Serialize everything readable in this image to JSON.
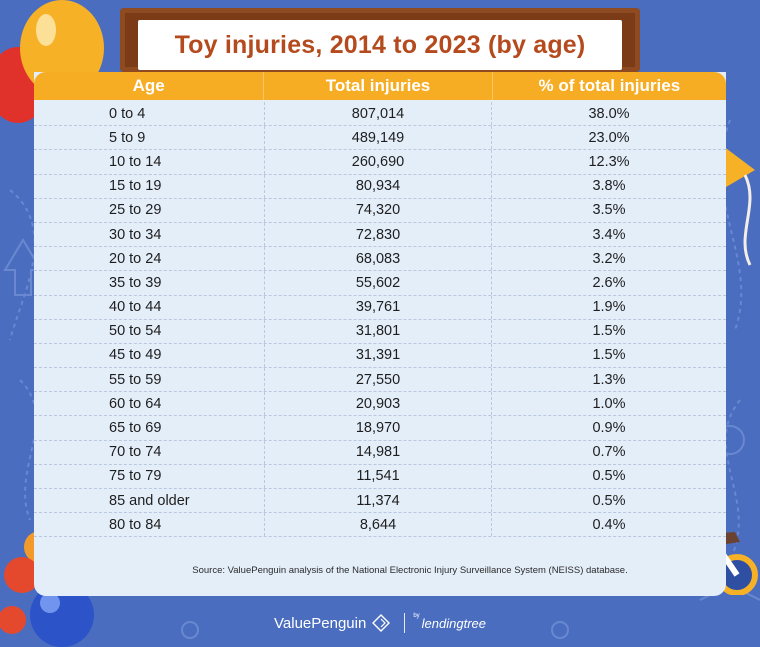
{
  "title": "Toy injuries, 2014 to 2023 (by age)",
  "table": {
    "headers": [
      "Age",
      "Total injuries",
      "% of total injuries"
    ],
    "rows": [
      [
        "0 to 4",
        "807,014",
        "38.0%"
      ],
      [
        "5 to 9",
        "489,149",
        "23.0%"
      ],
      [
        "10 to 14",
        "260,690",
        "12.3%"
      ],
      [
        "15 to 19",
        "80,934",
        "3.8%"
      ],
      [
        "25 to 29",
        "74,320",
        "3.5%"
      ],
      [
        "30 to 34",
        "72,830",
        "3.4%"
      ],
      [
        "20 to 24",
        "68,083",
        "3.2%"
      ],
      [
        "35 to 39",
        "55,602",
        "2.6%"
      ],
      [
        "40 to 44",
        "39,761",
        "1.9%"
      ],
      [
        "50 to 54",
        "31,801",
        "1.5%"
      ],
      [
        "45 to 49",
        "31,391",
        "1.5%"
      ],
      [
        "55 to 59",
        "27,550",
        "1.3%"
      ],
      [
        "60 to 64",
        "20,903",
        "1.0%"
      ],
      [
        "65 to 69",
        "18,970",
        "0.9%"
      ],
      [
        "70 to 74",
        "14,981",
        "0.7%"
      ],
      [
        "75 to 79",
        "11,541",
        "0.5%"
      ],
      [
        "85 and older",
        "11,374",
        "0.5%"
      ],
      [
        "80 to 84",
        "8,644",
        "0.4%"
      ]
    ]
  },
  "source": "Source: ValuePenguin analysis of the National Electronic Injury Surveillance System (NEISS) database.",
  "footer": {
    "brand": "ValuePenguin",
    "by": "by",
    "partner": "lendingtree"
  },
  "colors": {
    "background": "#4a6dc0",
    "header": "#f6ad24",
    "title": "#b44a1d",
    "table": "#e4eef9",
    "board": "#7a3b16"
  },
  "decorations": [
    "balloon-icon",
    "kite-icon",
    "tricycle-icon",
    "marbles-icon"
  ],
  "chart_data": {
    "type": "table",
    "title": "Toy injuries, 2014 to 2023 (by age)",
    "columns": [
      "Age",
      "Total injuries",
      "% of total injuries"
    ],
    "categories": [
      "0 to 4",
      "5 to 9",
      "10 to 14",
      "15 to 19",
      "25 to 29",
      "30 to 34",
      "20 to 24",
      "35 to 39",
      "40 to 44",
      "50 to 54",
      "45 to 49",
      "55 to 59",
      "60 to 64",
      "65 to 69",
      "70 to 74",
      "75 to 79",
      "85 and older",
      "80 to 84"
    ],
    "series": [
      {
        "name": "Total injuries",
        "values": [
          807014,
          489149,
          260690,
          80934,
          74320,
          72830,
          68083,
          55602,
          39761,
          31801,
          31391,
          27550,
          20903,
          18970,
          14981,
          11541,
          11374,
          8644
        ]
      },
      {
        "name": "% of total injuries",
        "values": [
          38.0,
          23.0,
          12.3,
          3.8,
          3.5,
          3.4,
          3.2,
          2.6,
          1.9,
          1.5,
          1.5,
          1.3,
          1.0,
          0.9,
          0.7,
          0.5,
          0.5,
          0.4
        ]
      }
    ]
  }
}
